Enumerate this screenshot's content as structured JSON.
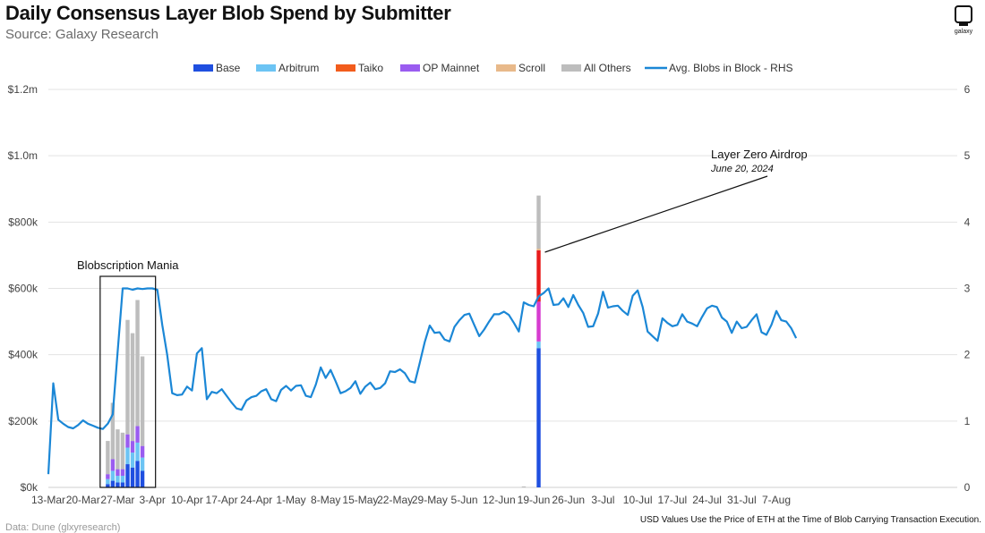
{
  "header": {
    "title": "Daily Consensus Layer Blob Spend by Submitter",
    "subtitle": "Source: Galaxy Research",
    "logo_text": "galaxy"
  },
  "footer": {
    "left": "Data: Dune (glxyresearch)",
    "right": "USD Values Use the Price of ETH at the Time of Blob Carrying Transaction Execution."
  },
  "colors": {
    "Base": "#1f4fe0",
    "Arbitrum": "#6cc4f4",
    "Taiko": "#f25c1c",
    "OP Mainnet": "#9a5cf0",
    "Scroll": "#e8b98a",
    "All Others": "#bdbdbd",
    "line": "#1b87d6",
    "grid": "#e3e3e3"
  },
  "chart_data": {
    "type": "bar",
    "title": "Daily Consensus Layer Blob Spend by Submitter",
    "x_tick_labels": [
      "13-Mar",
      "20-Mar",
      "27-Mar",
      "3-Apr",
      "10-Apr",
      "17-Apr",
      "24-Apr",
      "1-May",
      "8-May",
      "15-May",
      "22-May",
      "29-May",
      "5-Jun",
      "12-Jun",
      "19-Jun",
      "26-Jun",
      "3-Jul",
      "10-Jul",
      "17-Jul",
      "24-Jul",
      "31-Jul",
      "7-Aug"
    ],
    "y_left_ticks": [
      "$0k",
      "$200k",
      "$400k",
      "$600k",
      "$800k",
      "$1.0m",
      "$1.2m"
    ],
    "y_left_lim": [
      0,
      1200000
    ],
    "y_right_ticks": [
      "0",
      "1",
      "2",
      "3",
      "4",
      "5",
      "6"
    ],
    "y_right_lim": [
      0,
      6
    ],
    "legend": [
      "Base",
      "Arbitrum",
      "Taiko",
      "OP Mainnet",
      "Scroll",
      "All Others",
      "Avg. Blobs in Block - RHS"
    ],
    "legend_position": "top",
    "grid": true,
    "bars": [
      {
        "date": "2024-03-25",
        "Base": 10000,
        "Arbitrum": 15000,
        "Taiko": 0,
        "OP Mainnet": 15000,
        "Scroll": 0,
        "All Others": 100000
      },
      {
        "date": "2024-03-26",
        "Base": 20000,
        "Arbitrum": 30000,
        "Taiko": 0,
        "OP Mainnet": 35000,
        "Scroll": 0,
        "All Others": 170000
      },
      {
        "date": "2024-03-27",
        "Base": 15000,
        "Arbitrum": 20000,
        "Taiko": 0,
        "OP Mainnet": 20000,
        "Scroll": 0,
        "All Others": 120000
      },
      {
        "date": "2024-03-28",
        "Base": 15000,
        "Arbitrum": 20000,
        "Taiko": 0,
        "OP Mainnet": 20000,
        "Scroll": 0,
        "All Others": 110000
      },
      {
        "date": "2024-03-29",
        "Base": 70000,
        "Arbitrum": 50000,
        "Taiko": 0,
        "OP Mainnet": 40000,
        "Scroll": 0,
        "All Others": 345000
      },
      {
        "date": "2024-03-30",
        "Base": 60000,
        "Arbitrum": 45000,
        "Taiko": 0,
        "OP Mainnet": 35000,
        "Scroll": 0,
        "All Others": 325000
      },
      {
        "date": "2024-03-31",
        "Base": 80000,
        "Arbitrum": 55000,
        "Taiko": 0,
        "OP Mainnet": 50000,
        "Scroll": 0,
        "All Others": 380000
      },
      {
        "date": "2024-04-01",
        "Base": 50000,
        "Arbitrum": 40000,
        "Taiko": 0,
        "OP Mainnet": 35000,
        "Scroll": 0,
        "All Others": 270000
      },
      {
        "date": "2024-06-17",
        "Base": 0,
        "Arbitrum": 0,
        "Taiko": 0,
        "OP Mainnet": 0,
        "Scroll": 0,
        "All Others": 3000
      },
      {
        "date": "2024-06-20",
        "Base": 420000,
        "Arbitrum": 20000,
        "Taiko": 0,
        "OP Mainnet": 0,
        "Scroll": 0,
        "All Others": 0,
        "Magenta": 120000,
        "Red": 155000,
        "Scroll_band": 5000,
        "Gray_top": 160000
      }
    ],
    "line": {
      "name": "Avg. Blobs in Block - RHS",
      "start_date": "2024-03-13",
      "values": [
        0.2,
        1.57,
        1.02,
        0.96,
        0.91,
        0.89,
        0.94,
        1.01,
        0.96,
        0.93,
        0.9,
        0.88,
        0.96,
        1.1,
        2.05,
        3.0,
        3.0,
        2.98,
        3.0,
        2.99,
        3.0,
        3.0,
        2.98,
        2.45,
        2.0,
        1.42,
        1.39,
        1.4,
        1.52,
        1.46,
        2.02,
        2.1,
        1.33,
        1.44,
        1.42,
        1.48,
        1.38,
        1.28,
        1.19,
        1.17,
        1.31,
        1.36,
        1.38,
        1.45,
        1.48,
        1.33,
        1.3,
        1.47,
        1.53,
        1.46,
        1.53,
        1.54,
        1.38,
        1.36,
        1.55,
        1.81,
        1.65,
        1.77,
        1.6,
        1.42,
        1.45,
        1.5,
        1.6,
        1.41,
        1.52,
        1.58,
        1.48,
        1.5,
        1.57,
        1.75,
        1.74,
        1.78,
        1.72,
        1.6,
        1.58,
        1.88,
        2.19,
        2.44,
        2.33,
        2.34,
        2.23,
        2.2,
        2.42,
        2.52,
        2.6,
        2.62,
        2.45,
        2.28,
        2.38,
        2.5,
        2.61,
        2.61,
        2.65,
        2.6,
        2.48,
        2.35,
        2.79,
        2.75,
        2.73,
        2.88,
        2.93,
        3.0,
        2.75,
        2.76,
        2.85,
        2.72,
        2.9,
        2.75,
        2.63,
        2.42,
        2.43,
        2.62,
        2.95,
        2.71,
        2.73,
        2.74,
        2.66,
        2.6,
        2.89,
        2.97,
        2.72,
        2.35,
        2.28,
        2.21,
        2.55,
        2.48,
        2.43,
        2.45,
        2.61,
        2.5,
        2.47,
        2.43,
        2.57,
        2.7,
        2.74,
        2.72,
        2.56,
        2.5,
        2.33,
        2.5,
        2.4,
        2.42,
        2.52,
        2.61,
        2.34,
        2.3,
        2.45,
        2.66,
        2.52,
        2.5,
        2.4,
        2.25
      ]
    },
    "annotations": {
      "box_label": "Blobscription Mania",
      "arrow_label": "Layer Zero Airdrop",
      "arrow_sublabel": "June 20, 2024"
    }
  }
}
